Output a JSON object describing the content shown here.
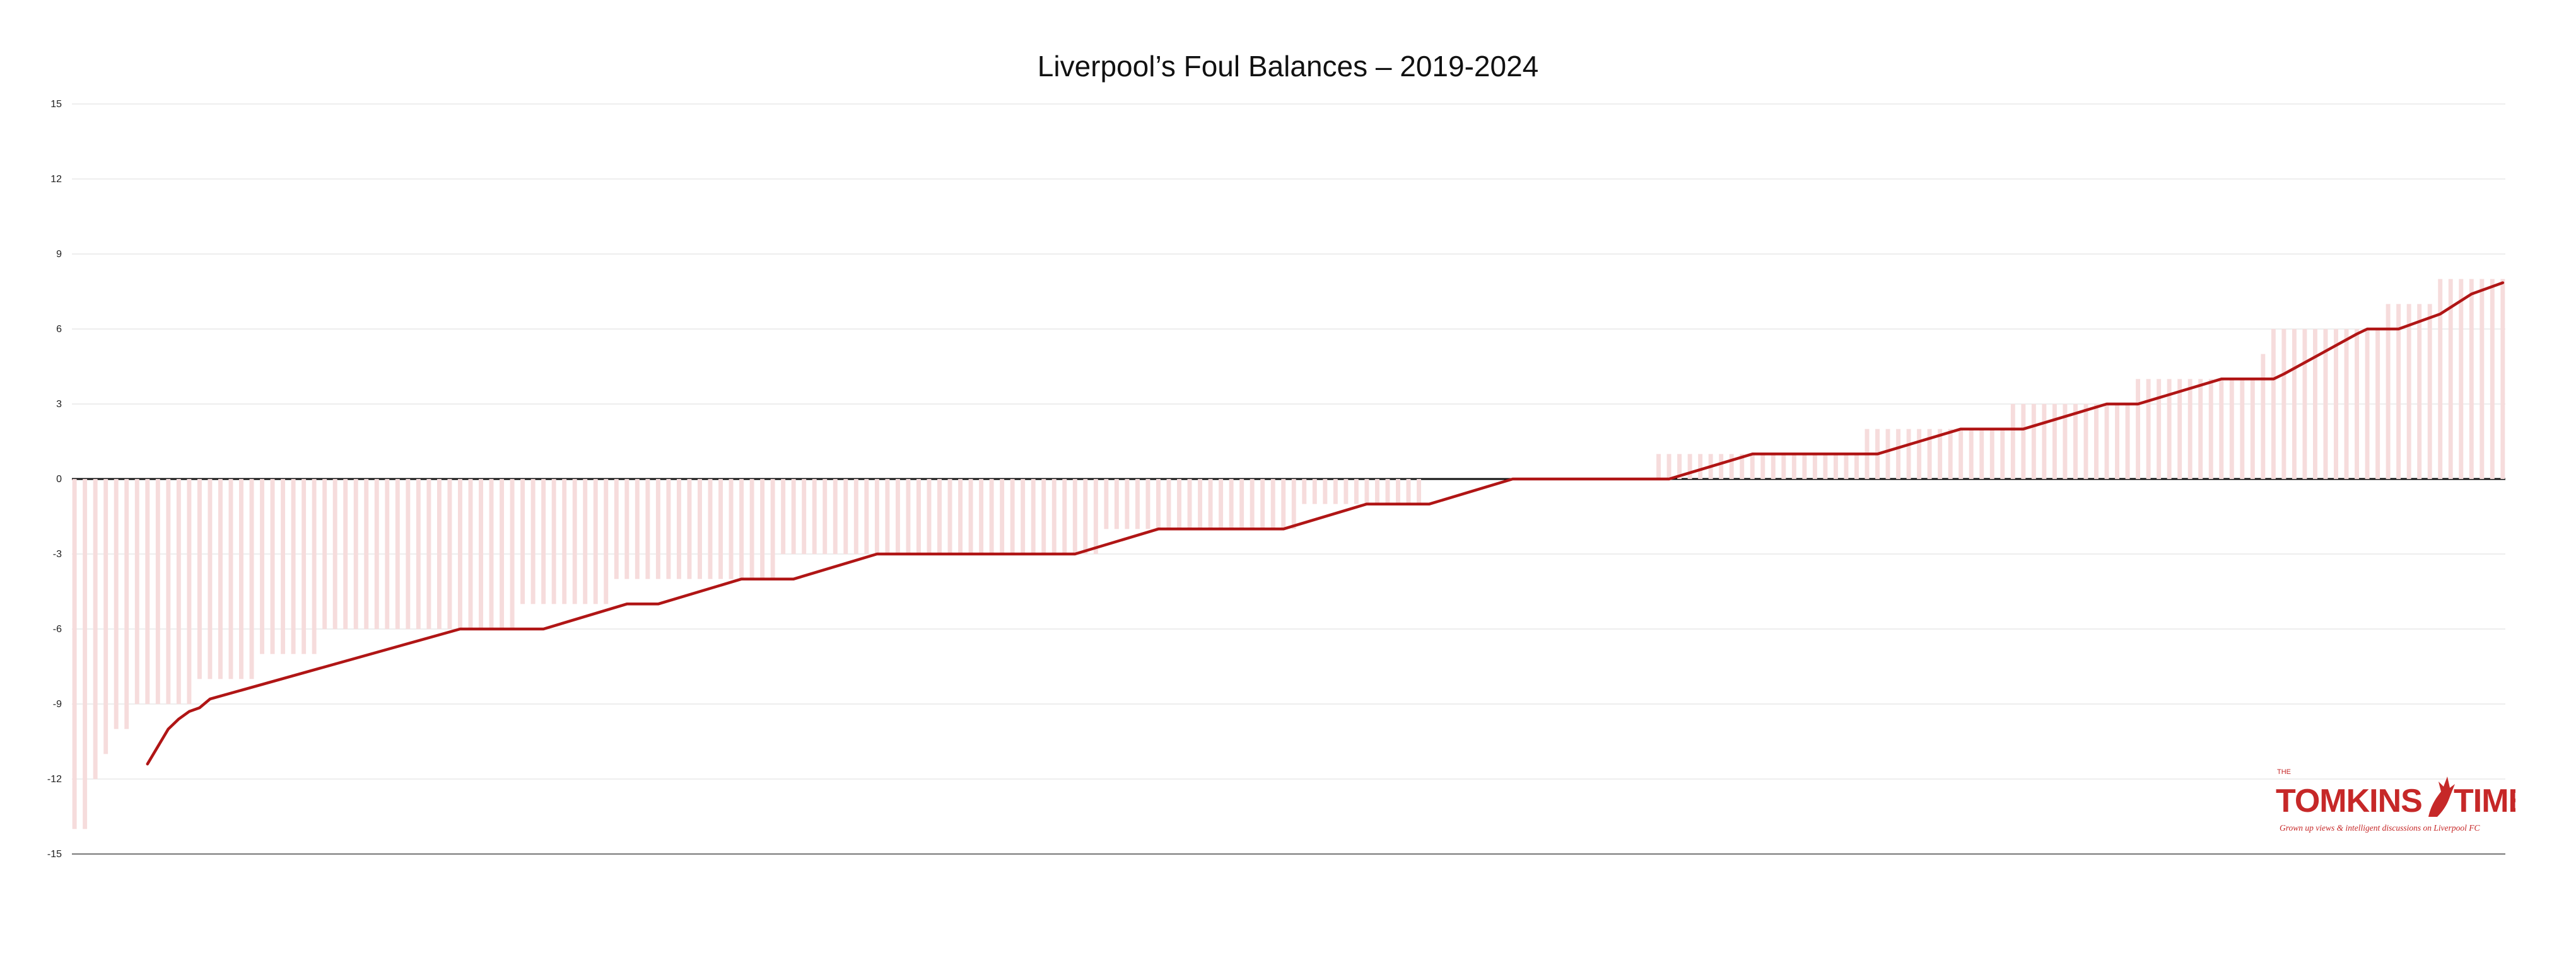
{
  "chart_data": {
    "type": "bar+line",
    "title": "Liverpool’s Foul Balances – 2019-2024",
    "xlabel": "",
    "ylabel": "",
    "ylim": [
      -15,
      15
    ],
    "yticks": [
      15,
      12,
      9,
      6,
      3,
      0,
      -3,
      -6,
      -9,
      -12,
      -15
    ],
    "grid": true,
    "legend": "none",
    "bar_color": "#f6dcdc",
    "line_color": "#b01515",
    "bars": [
      -14,
      -14,
      -12,
      -11,
      -10,
      -10,
      -9,
      -9,
      -9,
      -9,
      -9,
      -9,
      -8,
      -8,
      -8,
      -8,
      -8,
      -8,
      -7,
      -7,
      -7,
      -7,
      -7,
      -7,
      -6,
      -6,
      -6,
      -6,
      -6,
      -6,
      -6,
      -6,
      -6,
      -6,
      -6,
      -6,
      -6,
      -6,
      -6,
      -6,
      -6,
      -6,
      -6,
      -5,
      -5,
      -5,
      -5,
      -5,
      -5,
      -5,
      -5,
      -5,
      -4,
      -4,
      -4,
      -4,
      -4,
      -4,
      -4,
      -4,
      -4,
      -4,
      -4,
      -4,
      -4,
      -4,
      -4,
      -4,
      -3,
      -3,
      -3,
      -3,
      -3,
      -3,
      -3,
      -3,
      -3,
      -3,
      -3,
      -3,
      -3,
      -3,
      -3,
      -3,
      -3,
      -3,
      -3,
      -3,
      -3,
      -3,
      -3,
      -3,
      -3,
      -3,
      -3,
      -3,
      -3,
      -3,
      -3,
      -2,
      -2,
      -2,
      -2,
      -2,
      -2,
      -2,
      -2,
      -2,
      -2,
      -2,
      -2,
      -2,
      -2,
      -2,
      -2,
      -2,
      -2,
      -2,
      -1,
      -1,
      -1,
      -1,
      -1,
      -1,
      -1,
      -1,
      -1,
      -1,
      -1,
      -1,
      0,
      0,
      0,
      0,
      0,
      0,
      0,
      0,
      0,
      0,
      0,
      0,
      0,
      0,
      0,
      0,
      0,
      0,
      0,
      0,
      0,
      0,
      1,
      1,
      1,
      1,
      1,
      1,
      1,
      1,
      1,
      1,
      1,
      1,
      1,
      1,
      1,
      1,
      1,
      1,
      1,
      1,
      2,
      2,
      2,
      2,
      2,
      2,
      2,
      2,
      2,
      2,
      2,
      2,
      2,
      2,
      3,
      3,
      3,
      3,
      3,
      3,
      3,
      3,
      3,
      3,
      3,
      3,
      4,
      4,
      4,
      4,
      4,
      4,
      4,
      4,
      4,
      4,
      4,
      4,
      5,
      6,
      6,
      6,
      6,
      6,
      6,
      6,
      6,
      6,
      6,
      6,
      7,
      7,
      7,
      7,
      7,
      8,
      8,
      8,
      8,
      8,
      8,
      8
    ],
    "trend_line": [
      {
        "x": 7,
        "y": -11.4
      },
      {
        "x": 9,
        "y": -10
      },
      {
        "x": 10,
        "y": -9.6
      },
      {
        "x": 11,
        "y": -9.3
      },
      {
        "x": 12,
        "y": -9.15
      },
      {
        "x": 13,
        "y": -8.8
      },
      {
        "x": 37,
        "y": -6
      },
      {
        "x": 45,
        "y": -6
      },
      {
        "x": 53,
        "y": -5
      },
      {
        "x": 56,
        "y": -5
      },
      {
        "x": 64,
        "y": -4
      },
      {
        "x": 69,
        "y": -4
      },
      {
        "x": 77,
        "y": -3
      },
      {
        "x": 96,
        "y": -3
      },
      {
        "x": 104,
        "y": -2
      },
      {
        "x": 116,
        "y": -2
      },
      {
        "x": 124,
        "y": -1
      },
      {
        "x": 130,
        "y": -1
      },
      {
        "x": 138,
        "y": 0
      },
      {
        "x": 153,
        "y": 0
      },
      {
        "x": 161,
        "y": 1
      },
      {
        "x": 173,
        "y": 1
      },
      {
        "x": 181,
        "y": 2
      },
      {
        "x": 187,
        "y": 2
      },
      {
        "x": 195,
        "y": 3
      },
      {
        "x": 198,
        "y": 3
      },
      {
        "x": 206,
        "y": 4
      },
      {
        "x": 211,
        "y": 4
      },
      {
        "x": 212,
        "y": 4.2
      },
      {
        "x": 219,
        "y": 5.8
      },
      {
        "x": 220,
        "y": 6
      },
      {
        "x": 223,
        "y": 6
      },
      {
        "x": 227,
        "y": 6.6
      },
      {
        "x": 230,
        "y": 7.4
      },
      {
        "x": 233,
        "y": 7.85
      }
    ]
  },
  "logo": {
    "name": "TOMKINS TIMES",
    "word_left": "TOMKINS",
    "word_right": "TIMES",
    "small_text": "THE",
    "tagline": "Grown up views & intelligent discussions on Liverpool FC"
  }
}
